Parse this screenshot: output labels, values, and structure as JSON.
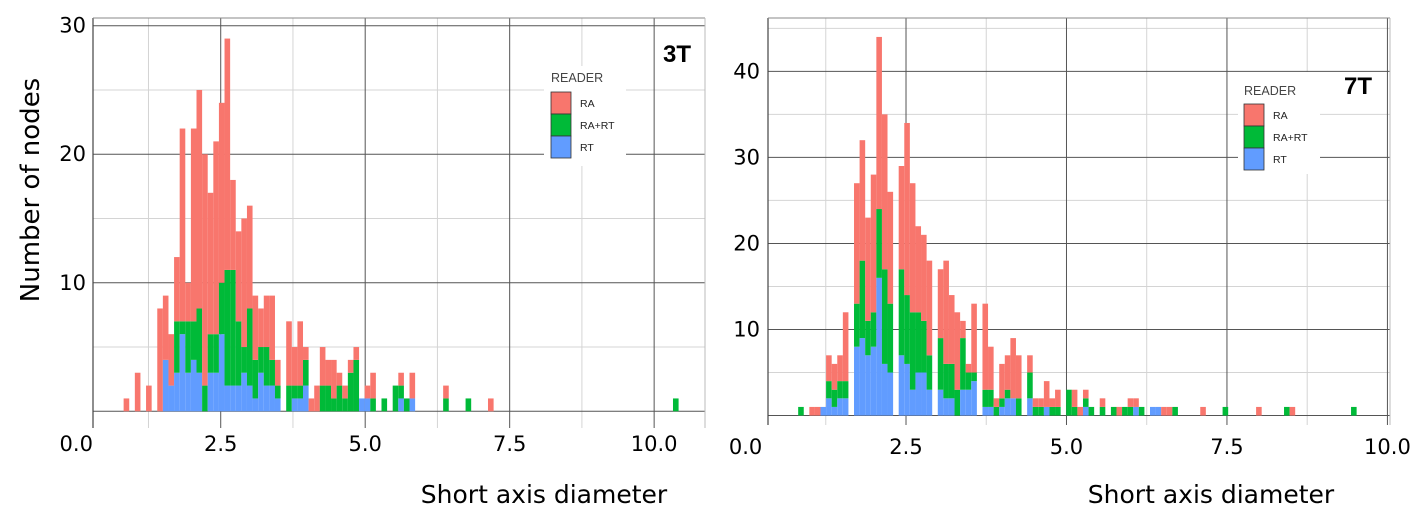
{
  "chart_data": [
    {
      "type": "bar",
      "stacked": true,
      "title": "3T",
      "xlabel": "Short axis diameter",
      "ylabel": "Number of nodes",
      "x_ticks": [
        "0.0",
        "2.5",
        "5.0",
        "7.5",
        "10.0"
      ],
      "y_ticks": [
        "10",
        "20",
        "30"
      ],
      "xlim": [
        0.29,
        10.88
      ],
      "ylim": [
        -1.3,
        30.6
      ],
      "grid": true,
      "bin_start": 0.82,
      "bin_width": 0.097,
      "legend": {
        "title": "READER",
        "position": "top-right",
        "entries": [
          "RA",
          "RA+RT",
          "RT"
        ]
      },
      "series": [
        {
          "name": "RT",
          "color": "#619CFF",
          "values": [
            0,
            0,
            0,
            0,
            0,
            0,
            0,
            4,
            2,
            3,
            6,
            3,
            4,
            3,
            0,
            3,
            3,
            6,
            2,
            2,
            2,
            3,
            2,
            1,
            3,
            2,
            2,
            1,
            0,
            0,
            1,
            1,
            2,
            0,
            0,
            0,
            0,
            0,
            0,
            0,
            0,
            0,
            1,
            1,
            0,
            0,
            0,
            0,
            0,
            1,
            0,
            1,
            0,
            0,
            0,
            0,
            0,
            0,
            0,
            0,
            0,
            0,
            0,
            0,
            0,
            0,
            0,
            0,
            0,
            0,
            0,
            0,
            0,
            0,
            0,
            0,
            0,
            0,
            0,
            0,
            0,
            0,
            0,
            0,
            0,
            0,
            0,
            0,
            0,
            0,
            0,
            0,
            0,
            0,
            0,
            0,
            0,
            0,
            0
          ]
        },
        {
          "name": "RA+RT",
          "color": "#00BA38",
          "values": [
            0,
            0,
            0,
            0,
            0,
            0,
            0,
            0,
            0,
            4,
            1,
            4,
            3,
            5,
            2,
            3,
            3,
            4,
            9,
            9,
            5,
            2,
            6,
            3,
            2,
            3,
            2,
            1,
            0,
            2,
            1,
            1,
            2,
            0,
            0,
            2,
            2,
            1,
            2,
            1,
            3,
            4,
            0,
            0,
            1,
            0,
            1,
            0,
            2,
            1,
            1,
            0,
            0,
            0,
            0,
            0,
            0,
            1,
            0,
            0,
            0,
            1,
            0,
            0,
            0,
            0,
            0,
            0,
            0,
            0,
            0,
            0,
            0,
            0,
            0,
            0,
            0,
            0,
            0,
            0,
            0,
            0,
            0,
            0,
            0,
            0,
            0,
            0,
            0,
            0,
            0,
            0,
            0,
            0,
            0,
            0,
            0,
            0,
            1
          ]
        },
        {
          "name": "RA",
          "color": "#F8766D",
          "values": [
            1,
            0,
            3,
            0,
            2,
            0,
            8,
            5,
            4,
            5,
            15,
            3,
            15,
            17,
            18,
            11,
            15,
            14,
            18,
            7,
            7,
            10,
            8,
            5,
            3,
            4,
            5,
            2,
            0,
            5,
            3,
            5,
            1,
            1,
            2,
            3,
            2,
            3,
            1,
            1,
            1,
            1,
            0,
            1,
            2,
            0,
            0,
            0,
            0,
            1,
            0,
            2,
            0,
            0,
            0,
            0,
            0,
            1,
            0,
            0,
            0,
            0,
            0,
            0,
            0,
            1,
            0,
            0,
            0,
            0,
            0,
            0,
            0,
            0,
            0,
            0,
            0,
            0,
            0,
            0,
            0,
            0,
            0,
            0,
            0,
            0,
            0,
            0,
            0,
            0,
            0,
            0,
            0,
            0,
            0,
            0,
            0,
            0,
            0
          ]
        }
      ]
    },
    {
      "type": "bar",
      "stacked": true,
      "title": "7T",
      "xlabel": "Short axis diameter",
      "x_ticks": [
        "0.0",
        "2.5",
        "5.0",
        "7.5",
        "10.0"
      ],
      "y_ticks": [
        "10",
        "20",
        "30",
        "40"
      ],
      "xlim": [
        0.35,
        10.04
      ],
      "ylim": [
        -1.1,
        46.2
      ],
      "grid": true,
      "bin_start": 0.82,
      "bin_width": 0.087,
      "legend": {
        "title": "READER",
        "position": "top-right",
        "entries": [
          "RA",
          "RA+RT",
          "RT"
        ]
      },
      "series": [
        {
          "name": "RT",
          "color": "#619CFF",
          "values": [
            0,
            0,
            0,
            0,
            1,
            2,
            1,
            2,
            2,
            0,
            8,
            9,
            7,
            8,
            16,
            6,
            5,
            0,
            7,
            6,
            3,
            5,
            5,
            3,
            0,
            3,
            2,
            2,
            0,
            3,
            3,
            4,
            0,
            1,
            1,
            0,
            1,
            2,
            2,
            0,
            0,
            2,
            0,
            0,
            1,
            0,
            0,
            0,
            0,
            0,
            0,
            1,
            0,
            0,
            0,
            0,
            0,
            0,
            0,
            0,
            1,
            0,
            0,
            1,
            1,
            0,
            0,
            0,
            0,
            0,
            0,
            0,
            0,
            0,
            0,
            0,
            0,
            0,
            0,
            0,
            0,
            0,
            0,
            0,
            0,
            0,
            0,
            0,
            0,
            0,
            0,
            0,
            0,
            0,
            0,
            0,
            0,
            0,
            0,
            0
          ]
        },
        {
          "name": "RA+RT",
          "color": "#00BA38",
          "values": [
            1,
            0,
            0,
            0,
            0,
            2,
            2,
            2,
            2,
            0,
            5,
            9,
            4,
            4,
            8,
            11,
            8,
            0,
            10,
            8,
            9,
            7,
            6,
            4,
            0,
            6,
            4,
            4,
            3,
            6,
            2,
            1,
            0,
            2,
            2,
            1,
            1,
            1,
            0,
            2,
            0,
            3,
            1,
            1,
            0,
            1,
            1,
            0,
            3,
            1,
            0,
            1,
            1,
            0,
            1,
            0,
            1,
            0,
            1,
            1,
            0,
            1,
            0,
            0,
            0,
            0,
            0,
            1,
            0,
            0,
            0,
            0,
            0,
            0,
            0,
            0,
            1,
            0,
            0,
            0,
            0,
            0,
            0,
            0,
            0,
            0,
            0,
            1,
            0,
            0,
            0,
            0,
            0,
            0,
            0,
            0,
            0,
            0,
            0,
            1
          ]
        },
        {
          "name": "RA",
          "color": "#F8766D",
          "values": [
            0,
            0,
            1,
            1,
            0,
            3,
            3,
            3,
            8,
            0,
            14,
            14,
            12,
            16,
            20,
            18,
            13,
            0,
            12,
            20,
            15,
            10,
            10,
            11,
            0,
            8,
            12,
            8,
            9,
            2,
            1,
            8,
            0,
            10,
            5,
            1,
            4,
            4,
            7,
            5,
            0,
            2,
            1,
            1,
            3,
            1,
            2,
            0,
            0,
            2,
            1,
            1,
            0,
            0,
            1,
            0,
            0,
            1,
            0,
            1,
            1,
            0,
            0,
            0,
            0,
            1,
            1,
            0,
            0,
            0,
            0,
            0,
            1,
            0,
            0,
            0,
            0,
            0,
            0,
            0,
            0,
            0,
            1,
            0,
            0,
            0,
            0,
            0,
            1,
            0,
            0,
            0,
            0,
            0,
            0,
            0,
            0,
            0,
            0,
            0
          ]
        }
      ]
    }
  ]
}
